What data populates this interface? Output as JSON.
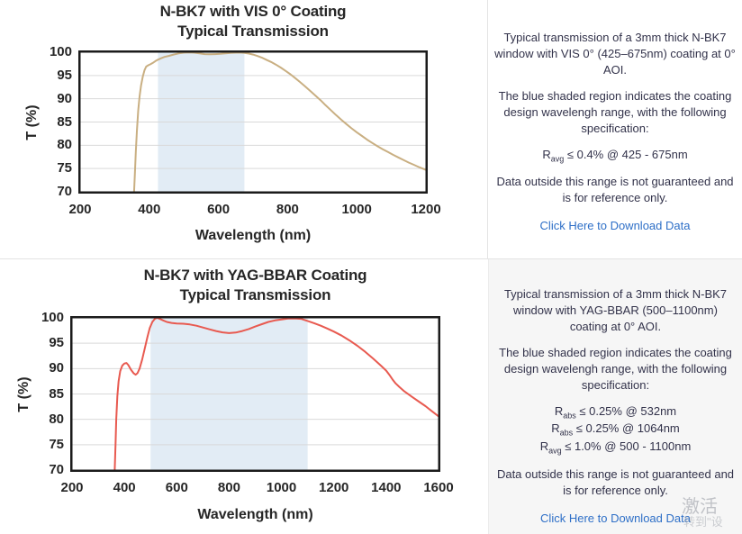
{
  "watermark": {
    "line1": "激活",
    "line2": "转到\"设"
  },
  "panels": [
    {
      "paragraph1": "Typical transmission of a 3mm thick N-BK7 window with VIS 0° (425–675nm) coating at 0° AOI.",
      "paragraph2": "The blue shaded region indicates the coating design wavelengh range, with the following specification:",
      "specs": [
        {
          "base": "R",
          "sub": "avg",
          "text": " ≤ 0.4% @ 425 - 675nm"
        }
      ],
      "paragraph3": "Data outside this range is not guaranteed and is for reference only.",
      "link_label": "Click Here to Download Data"
    },
    {
      "paragraph1": "Typical transmission of a 3mm thick N-BK7 window with YAG-BBAR (500–1100nm) coating at 0° AOI.",
      "paragraph2": "The blue shaded region indicates the coating design wavelengh range, with the following specification:",
      "specs": [
        {
          "base": "R",
          "sub": "abs",
          "text": " ≤ 0.25% @ 532nm"
        },
        {
          "base": "R",
          "sub": "abs",
          "text": " ≤ 0.25% @ 1064nm"
        },
        {
          "base": "R",
          "sub": "avg",
          "text": " ≤ 1.0% @ 500 - 1100nm"
        }
      ],
      "paragraph3": "Data outside this range is not guaranteed and is for reference only.",
      "link_label": "Click Here to Download Data"
    }
  ],
  "chart_data": [
    {
      "type": "line",
      "title_line1": "N-BK7 with VIS 0° Coating",
      "title_line2": "Typical Transmission",
      "xlabel": "Wavelength (nm)",
      "ylabel": "T (%)",
      "xlim": [
        200,
        1200
      ],
      "ylim": [
        70,
        100
      ],
      "xticks": [
        200,
        400,
        600,
        800,
        1000,
        1200
      ],
      "yticks": [
        70,
        75,
        80,
        85,
        90,
        95,
        100
      ],
      "grid": "horizontal",
      "shaded_region_nm": [
        425,
        675
      ],
      "shade_color": "#e2ecf5",
      "line_color": "#c9af82",
      "series": [
        {
          "name": "transmission",
          "points": [
            [
              356,
              70
            ],
            [
              358,
              73.5
            ],
            [
              361,
              78.5
            ],
            [
              364,
              83
            ],
            [
              368,
              87.5
            ],
            [
              372,
              90.5
            ],
            [
              376,
              92.8
            ],
            [
              381,
              94.7
            ],
            [
              386,
              96.1
            ],
            [
              391,
              96.9
            ],
            [
              397,
              97.2
            ],
            [
              403,
              97.4
            ],
            [
              410,
              97.7
            ],
            [
              418,
              98.1
            ],
            [
              425,
              98.4
            ],
            [
              434,
              98.7
            ],
            [
              444,
              99.0
            ],
            [
              456,
              99.2
            ],
            [
              470,
              99.5
            ],
            [
              485,
              99.75
            ],
            [
              500,
              99.9
            ],
            [
              515,
              99.95
            ],
            [
              530,
              99.9
            ],
            [
              545,
              99.75
            ],
            [
              560,
              99.6
            ],
            [
              575,
              99.55
            ],
            [
              590,
              99.6
            ],
            [
              605,
              99.65
            ],
            [
              620,
              99.75
            ],
            [
              635,
              99.85
            ],
            [
              650,
              99.9
            ],
            [
              665,
              99.9
            ],
            [
              675,
              99.85
            ],
            [
              688,
              99.7
            ],
            [
              700,
              99.5
            ],
            [
              712,
              99.2
            ],
            [
              725,
              98.85
            ],
            [
              738,
              98.4
            ],
            [
              752,
              97.9
            ],
            [
              766,
              97.35
            ],
            [
              780,
              96.7
            ],
            [
              794,
              96.0
            ],
            [
              808,
              95.25
            ],
            [
              822,
              94.45
            ],
            [
              836,
              93.6
            ],
            [
              850,
              92.7
            ],
            [
              865,
              91.7
            ],
            [
              880,
              90.7
            ],
            [
              895,
              89.7
            ],
            [
              910,
              88.6
            ],
            [
              925,
              87.55
            ],
            [
              940,
              86.5
            ],
            [
              955,
              85.5
            ],
            [
              970,
              84.55
            ],
            [
              985,
              83.65
            ],
            [
              1000,
              82.8
            ],
            [
              1015,
              82.0
            ],
            [
              1030,
              81.2
            ],
            [
              1045,
              80.5
            ],
            [
              1060,
              79.8
            ],
            [
              1075,
              79.15
            ],
            [
              1090,
              78.55
            ],
            [
              1105,
              77.95
            ],
            [
              1120,
              77.4
            ],
            [
              1135,
              76.85
            ],
            [
              1150,
              76.3
            ],
            [
              1165,
              75.8
            ],
            [
              1180,
              75.3
            ],
            [
              1200,
              74.7
            ]
          ]
        }
      ]
    },
    {
      "type": "line",
      "title_line1": "N-BK7 with YAG-BBAR Coating",
      "title_line2": "Typical Transmission",
      "xlabel": "Wavelength (nm)",
      "ylabel": "T (%)",
      "xlim": [
        200,
        1600
      ],
      "ylim": [
        70,
        100
      ],
      "xticks": [
        200,
        400,
        600,
        800,
        1000,
        1200,
        1400,
        1600
      ],
      "yticks": [
        70,
        75,
        80,
        85,
        90,
        95,
        100
      ],
      "grid": "horizontal",
      "shaded_region_nm": [
        500,
        1100
      ],
      "shade_color": "#e2ecf5",
      "line_color": "#e85a50",
      "series": [
        {
          "name": "transmission",
          "points": [
            [
              363,
              70
            ],
            [
              366,
              75
            ],
            [
              369,
              80
            ],
            [
              373,
              84.5
            ],
            [
              378,
              87.5
            ],
            [
              384,
              89.5
            ],
            [
              392,
              90.6
            ],
            [
              400,
              91.0
            ],
            [
              408,
              91.1
            ],
            [
              415,
              90.7
            ],
            [
              425,
              89.8
            ],
            [
              435,
              89.1
            ],
            [
              443,
              88.8
            ],
            [
              450,
              89.1
            ],
            [
              458,
              90.0
            ],
            [
              468,
              91.8
            ],
            [
              478,
              94.0
            ],
            [
              488,
              96.2
            ],
            [
              497,
              98.0
            ],
            [
              507,
              99.2
            ],
            [
              516,
              99.8
            ],
            [
              525,
              100
            ],
            [
              535,
              99.8
            ],
            [
              548,
              99.5
            ],
            [
              562,
              99.2
            ],
            [
              580,
              99.0
            ],
            [
              600,
              98.9
            ],
            [
              625,
              98.85
            ],
            [
              650,
              98.7
            ],
            [
              675,
              98.45
            ],
            [
              700,
              98.1
            ],
            [
              725,
              97.75
            ],
            [
              750,
              97.4
            ],
            [
              775,
              97.15
            ],
            [
              800,
              97.0
            ],
            [
              825,
              97.1
            ],
            [
              850,
              97.4
            ],
            [
              875,
              97.8
            ],
            [
              900,
              98.3
            ],
            [
              925,
              98.75
            ],
            [
              950,
              99.2
            ],
            [
              975,
              99.5
            ],
            [
              1000,
              99.7
            ],
            [
              1025,
              99.85
            ],
            [
              1050,
              99.9
            ],
            [
              1075,
              99.8
            ],
            [
              1100,
              99.4
            ],
            [
              1125,
              98.95
            ],
            [
              1150,
              98.45
            ],
            [
              1175,
              97.9
            ],
            [
              1200,
              97.3
            ],
            [
              1230,
              96.5
            ],
            [
              1260,
              95.55
            ],
            [
              1290,
              94.5
            ],
            [
              1320,
              93.3
            ],
            [
              1350,
              92.0
            ],
            [
              1380,
              90.6
            ],
            [
              1400,
              89.6
            ],
            [
              1412,
              88.8
            ],
            [
              1424,
              87.9
            ],
            [
              1436,
              87.1
            ],
            [
              1450,
              86.4
            ],
            [
              1470,
              85.5
            ],
            [
              1500,
              84.4
            ],
            [
              1525,
              83.5
            ],
            [
              1550,
              82.6
            ],
            [
              1575,
              81.6
            ],
            [
              1600,
              80.6
            ]
          ]
        }
      ]
    }
  ]
}
